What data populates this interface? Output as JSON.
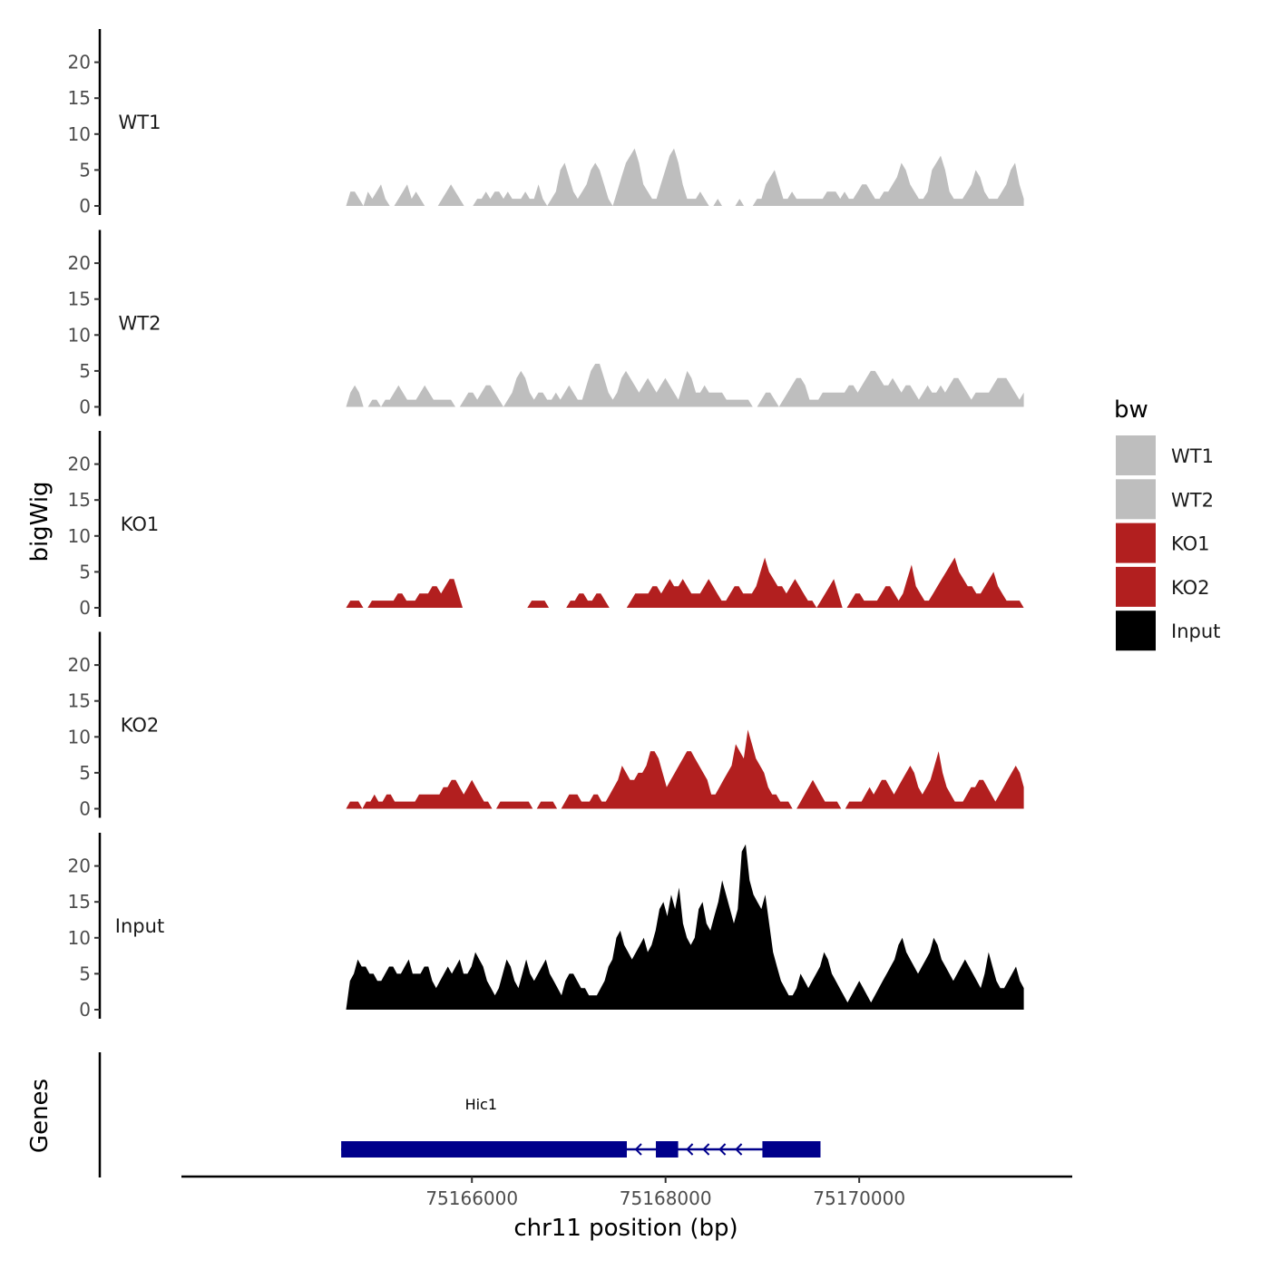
{
  "chart_data": {
    "type": "area",
    "ylabel": "bigWig",
    "xlabel": "chr11 position (bp)",
    "genes_label": "Genes",
    "x_range": [
      75163000,
      75172200
    ],
    "signal_x_range": [
      75164700,
      75171700
    ],
    "x_ticks": [
      {
        "value": 75166000,
        "label": "75166000"
      },
      {
        "value": 75168000,
        "label": "75168000"
      },
      {
        "value": 75170000,
        "label": "75170000"
      }
    ],
    "y_range": [
      0,
      25
    ],
    "y_ticks": [
      {
        "value": 0,
        "label": "0"
      },
      {
        "value": 5,
        "label": "5"
      },
      {
        "value": 10,
        "label": "10"
      },
      {
        "value": 15,
        "label": "15"
      },
      {
        "value": 20,
        "label": "20"
      }
    ],
    "tracks": [
      {
        "name": "WT1",
        "color": "#bebebe",
        "values": [
          0,
          2,
          2,
          1,
          0,
          2,
          1,
          2,
          3,
          1,
          0,
          0,
          1,
          2,
          3,
          1,
          2,
          1,
          0,
          0,
          0,
          0,
          1,
          2,
          3,
          2,
          1,
          0,
          0,
          0,
          1,
          1,
          2,
          1,
          2,
          2,
          1,
          2,
          1,
          1,
          1,
          2,
          1,
          1,
          3,
          1,
          0,
          1,
          2,
          5,
          6,
          4,
          2,
          1,
          2,
          3,
          5,
          6,
          5,
          3,
          1,
          0,
          2,
          4,
          6,
          7,
          8,
          6,
          3,
          2,
          1,
          1,
          3,
          5,
          7,
          8,
          6,
          3,
          1,
          1,
          1,
          2,
          1,
          0,
          0,
          1,
          0,
          0,
          0,
          0,
          1,
          0,
          0,
          0,
          1,
          1,
          3,
          4,
          5,
          3,
          1,
          1,
          2,
          1,
          1,
          1,
          1,
          1,
          1,
          1,
          2,
          2,
          2,
          1,
          2,
          1,
          1,
          2,
          3,
          3,
          2,
          1,
          1,
          2,
          2,
          3,
          4,
          6,
          5,
          3,
          2,
          1,
          1,
          2,
          5,
          6,
          7,
          5,
          2,
          1,
          1,
          1,
          2,
          3,
          5,
          4,
          2,
          1,
          1,
          1,
          2,
          3,
          5,
          6,
          3,
          1
        ]
      },
      {
        "name": "WT2",
        "color": "#bebebe",
        "values": [
          0,
          2,
          3,
          2,
          0,
          0,
          1,
          1,
          0,
          1,
          1,
          2,
          3,
          2,
          1,
          1,
          1,
          2,
          3,
          2,
          1,
          1,
          1,
          1,
          1,
          0,
          0,
          1,
          2,
          2,
          1,
          2,
          3,
          3,
          2,
          1,
          0,
          1,
          2,
          4,
          5,
          4,
          2,
          1,
          2,
          2,
          1,
          1,
          2,
          1,
          2,
          3,
          2,
          1,
          1,
          3,
          5,
          6,
          6,
          4,
          2,
          1,
          2,
          4,
          5,
          4,
          3,
          2,
          3,
          4,
          3,
          2,
          3,
          4,
          3,
          2,
          1,
          3,
          5,
          4,
          2,
          2,
          3,
          2,
          2,
          2,
          2,
          1,
          1,
          1,
          1,
          1,
          1,
          0,
          0,
          1,
          2,
          2,
          1,
          0,
          1,
          2,
          3,
          4,
          4,
          3,
          1,
          1,
          1,
          2,
          2,
          2,
          2,
          2,
          2,
          3,
          3,
          2,
          3,
          4,
          5,
          5,
          4,
          3,
          3,
          4,
          3,
          2,
          3,
          3,
          2,
          1,
          2,
          3,
          2,
          2,
          3,
          2,
          3,
          4,
          4,
          3,
          2,
          1,
          2,
          2,
          2,
          2,
          3,
          4,
          4,
          4,
          3,
          2,
          1,
          2
        ]
      },
      {
        "name": "KO1",
        "color": "#b21f1f",
        "values": [
          0,
          1,
          1,
          1,
          0,
          0,
          1,
          1,
          1,
          1,
          1,
          1,
          2,
          2,
          1,
          1,
          1,
          2,
          2,
          2,
          3,
          3,
          2,
          3,
          4,
          4,
          2,
          0,
          0,
          0,
          0,
          0,
          0,
          0,
          0,
          0,
          0,
          0,
          0,
          0,
          0,
          0,
          0,
          1,
          1,
          1,
          1,
          0,
          0,
          0,
          0,
          0,
          1,
          1,
          2,
          2,
          1,
          1,
          2,
          2,
          1,
          0,
          0,
          0,
          0,
          0,
          1,
          2,
          2,
          2,
          2,
          3,
          3,
          2,
          3,
          4,
          3,
          3,
          4,
          3,
          2,
          2,
          2,
          3,
          4,
          3,
          2,
          1,
          1,
          2,
          3,
          3,
          2,
          2,
          2,
          3,
          5,
          7,
          5,
          4,
          3,
          3,
          2,
          3,
          4,
          3,
          2,
          1,
          1,
          0,
          1,
          2,
          3,
          4,
          2,
          0,
          0,
          1,
          2,
          2,
          1,
          1,
          1,
          1,
          2,
          3,
          3,
          2,
          1,
          2,
          4,
          6,
          3,
          2,
          1,
          1,
          2,
          3,
          4,
          5,
          6,
          7,
          5,
          4,
          3,
          3,
          2,
          2,
          3,
          4,
          5,
          3,
          2,
          1,
          1,
          1,
          1,
          0
        ]
      },
      {
        "name": "KO2",
        "color": "#b21f1f",
        "values": [
          0,
          1,
          1,
          1,
          0,
          1,
          1,
          2,
          1,
          1,
          2,
          2,
          1,
          1,
          1,
          1,
          1,
          1,
          2,
          2,
          2,
          2,
          2,
          2,
          3,
          3,
          4,
          4,
          3,
          2,
          3,
          4,
          3,
          2,
          1,
          1,
          0,
          0,
          1,
          1,
          1,
          1,
          1,
          1,
          1,
          1,
          0,
          0,
          1,
          1,
          1,
          1,
          0,
          0,
          1,
          2,
          2,
          2,
          1,
          1,
          1,
          2,
          2,
          1,
          1,
          2,
          3,
          4,
          6,
          5,
          4,
          4,
          5,
          5,
          6,
          8,
          8,
          7,
          5,
          3,
          4,
          5,
          6,
          7,
          8,
          8,
          7,
          6,
          5,
          4,
          2,
          2,
          3,
          4,
          5,
          6,
          9,
          8,
          7,
          11,
          9,
          7,
          6,
          5,
          3,
          2,
          2,
          1,
          1,
          1,
          0,
          0,
          1,
          2,
          3,
          4,
          3,
          2,
          1,
          1,
          1,
          1,
          0,
          0,
          1,
          1,
          1,
          1,
          2,
          3,
          2,
          3,
          4,
          4,
          3,
          2,
          3,
          4,
          5,
          6,
          5,
          3,
          2,
          3,
          4,
          6,
          8,
          5,
          3,
          2,
          1,
          1,
          1,
          2,
          3,
          3,
          4,
          4,
          3,
          2,
          1,
          2,
          3,
          4,
          5,
          6,
          5,
          3
        ]
      },
      {
        "name": "Input",
        "color": "#000000",
        "values": [
          0,
          4,
          5,
          7,
          6,
          6,
          5,
          5,
          4,
          4,
          5,
          6,
          6,
          5,
          5,
          6,
          7,
          5,
          5,
          5,
          6,
          6,
          4,
          3,
          4,
          5,
          6,
          5,
          6,
          7,
          5,
          5,
          6,
          8,
          7,
          6,
          4,
          3,
          2,
          3,
          5,
          7,
          6,
          4,
          3,
          5,
          7,
          5,
          4,
          5,
          6,
          7,
          5,
          4,
          3,
          2,
          4,
          5,
          5,
          4,
          3,
          3,
          2,
          2,
          2,
          3,
          4,
          6,
          7,
          10,
          11,
          9,
          8,
          7,
          8,
          9,
          10,
          8,
          9,
          11,
          14,
          15,
          13,
          16,
          14,
          17,
          12,
          10,
          9,
          10,
          14,
          15,
          12,
          11,
          13,
          15,
          18,
          16,
          14,
          12,
          14,
          22,
          23,
          18,
          16,
          15,
          14,
          16,
          12,
          8,
          6,
          4,
          3,
          2,
          2,
          3,
          5,
          4,
          3,
          4,
          5,
          6,
          8,
          7,
          5,
          4,
          3,
          2,
          1,
          2,
          3,
          4,
          3,
          2,
          1,
          2,
          3,
          4,
          5,
          6,
          7,
          9,
          10,
          8,
          7,
          6,
          5,
          6,
          7,
          8,
          10,
          9,
          7,
          6,
          5,
          4,
          5,
          6,
          7,
          6,
          5,
          4,
          3,
          5,
          8,
          6,
          4,
          3,
          3,
          4,
          5,
          6,
          4,
          3
        ]
      }
    ],
    "legend": {
      "title": "bw",
      "entries": [
        {
          "label": "WT1",
          "color": "#bebebe"
        },
        {
          "label": "WT2",
          "color": "#bebebe"
        },
        {
          "label": "KO1",
          "color": "#b21f1f"
        },
        {
          "label": "KO2",
          "color": "#b21f1f"
        },
        {
          "label": "Input",
          "color": "#000000"
        }
      ]
    },
    "gene": {
      "name": "Hic1",
      "color": "#00008b",
      "strand": "-",
      "start": 75164650,
      "end": 75169600,
      "exons": [
        {
          "start": 75164650,
          "end": 75167600
        },
        {
          "start": 75167900,
          "end": 75168130
        },
        {
          "start": 75169000,
          "end": 75169600
        }
      ],
      "utrs": [
        {
          "start": 75167600,
          "end": 75167610
        }
      ]
    }
  }
}
